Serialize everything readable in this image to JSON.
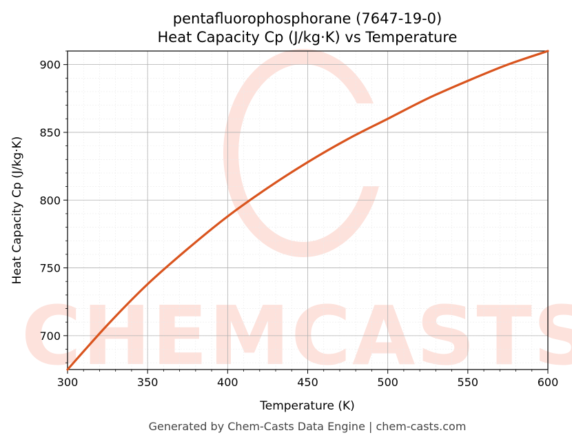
{
  "chart_data": {
    "type": "line",
    "title": "pentafluorophosphorane (7647-19-0)",
    "subtitle": "Heat Capacity Cp (J/kg·K) vs Temperature",
    "xlabel": "Temperature (K)",
    "ylabel": "Heat Capacity Cp (J/kg·K)",
    "xlim": [
      300,
      600
    ],
    "ylim": [
      675,
      910
    ],
    "xticks": [
      "300",
      "350",
      "400",
      "450",
      "500",
      "550",
      "600"
    ],
    "yticks": [
      "700",
      "750",
      "800",
      "850",
      "900"
    ],
    "grid": true,
    "series": [
      {
        "color": "#d9541e",
        "x": [
          300,
          325,
          350,
          375,
          400,
          425,
          450,
          475,
          500,
          525,
          550,
          575,
          600
        ],
        "y": [
          675,
          708,
          738,
          764,
          788,
          809,
          828,
          845,
          860,
          875,
          888,
          900,
          910
        ]
      }
    ]
  },
  "watermark": {
    "text": "CHEMCASTS",
    "color": "#fde2dc"
  },
  "footer": {
    "text": "Generated by Chem-Casts Data Engine | chem-casts.com"
  }
}
